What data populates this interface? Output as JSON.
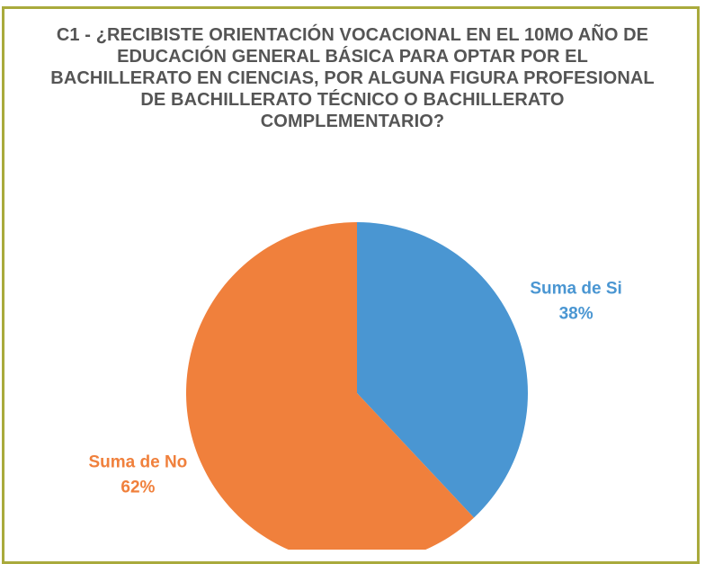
{
  "chart_data": {
    "type": "pie",
    "title": "C1 - ¿RECIBISTE ORIENTACIÓN VOCACIONAL EN EL 10MO AÑO DE EDUCACIÓN GENERAL BÁSICA PARA OPTAR POR EL BACHILLERATO EN CIENCIAS, POR ALGUNA FIGURA PROFESIONAL DE BACHILLERATO TÉCNICO O BACHILLERATO COMPLEMENTARIO?",
    "categories": [
      "Suma de Si",
      "Suma de No"
    ],
    "values": [
      38,
      62
    ],
    "value_labels": [
      "38%",
      "62%"
    ],
    "colors": [
      "#4a96d2",
      "#f0803c"
    ]
  }
}
